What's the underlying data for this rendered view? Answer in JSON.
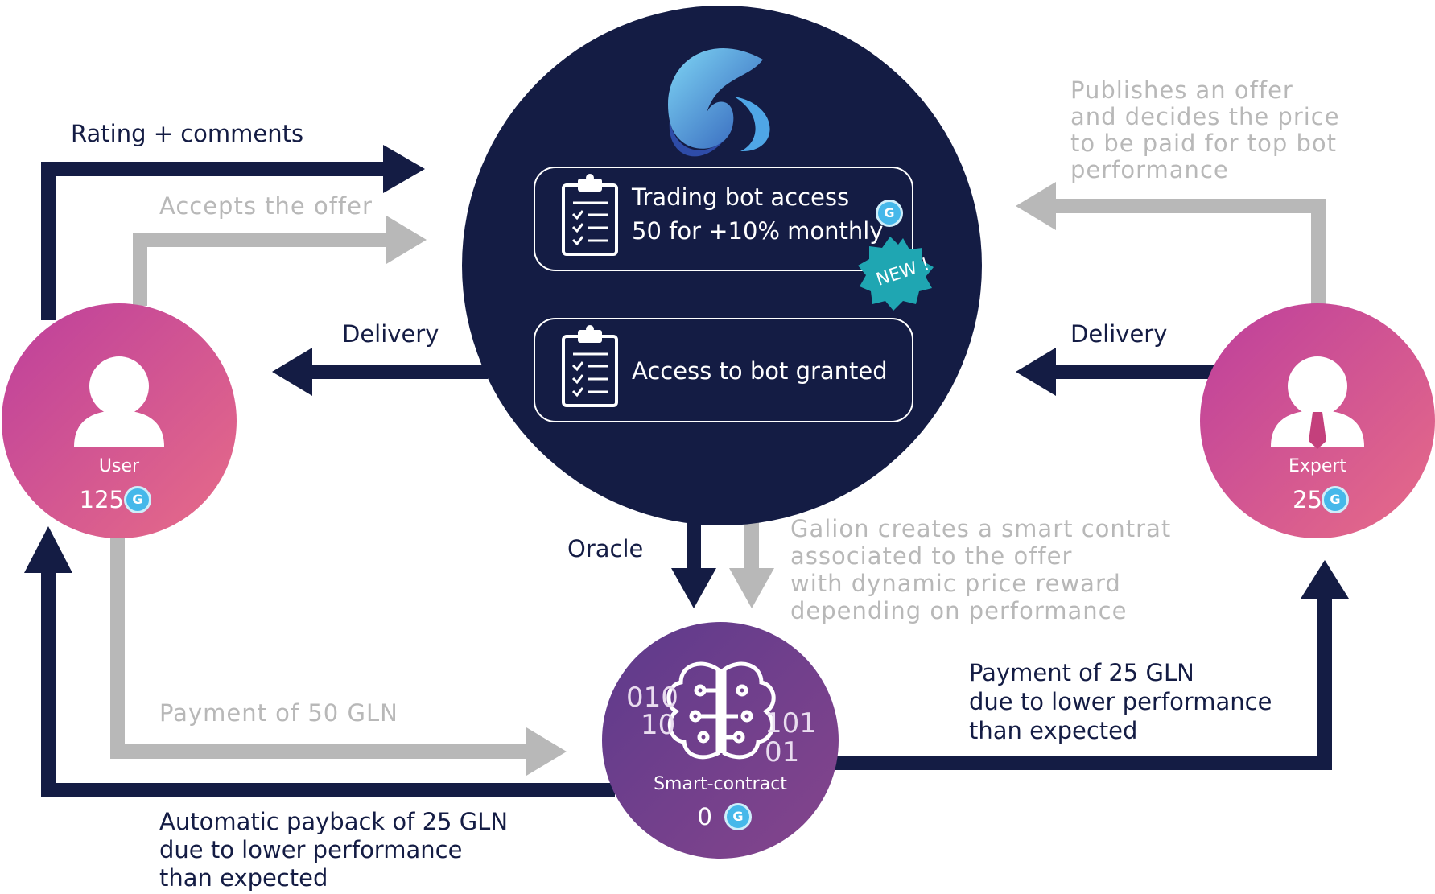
{
  "platform": {
    "offer_card": {
      "line1": "Trading bot access",
      "line2": "50 for +10% monthly",
      "badge": "NEW !"
    },
    "granted_card": {
      "text": "Access to bot granted"
    }
  },
  "user": {
    "label": "User",
    "balance": "125"
  },
  "expert": {
    "label": "Expert",
    "balance": "25"
  },
  "smart_contract": {
    "label": "Smart-contract",
    "balance": "0",
    "digits_left_1": "010",
    "digits_left_2": "10",
    "digits_right_1": "101",
    "digits_right_2": "01"
  },
  "coin_symbol": "G",
  "flows": {
    "rating": "Rating + comments",
    "accepts": "Accepts the offer",
    "delivery_user": "Delivery",
    "delivery_expert": "Delivery",
    "publishes": [
      "Publishes an offer",
      "and decides the price",
      "to be paid for top bot",
      "performance"
    ],
    "oracle": "Oracle",
    "galion": [
      "Galion creates a smart contrat",
      "associated to the offer",
      "with dynamic price reward",
      "depending on performance"
    ],
    "payment_50": "Payment of 50 GLN",
    "payment_25": [
      "Payment of 25 GLN",
      "due to lower performance",
      "than expected"
    ],
    "payback": [
      "Automatic payback of 25 GLN",
      "due to lower performance",
      "than expected"
    ]
  },
  "colors": {
    "navy": "#141c44",
    "grey": "#b8b8b8",
    "pink_start": "#c2449a",
    "pink_end": "#e2698a",
    "purple": "#6a3d8b",
    "teal": "#1fa6b2",
    "coin": "#46b8ea"
  }
}
